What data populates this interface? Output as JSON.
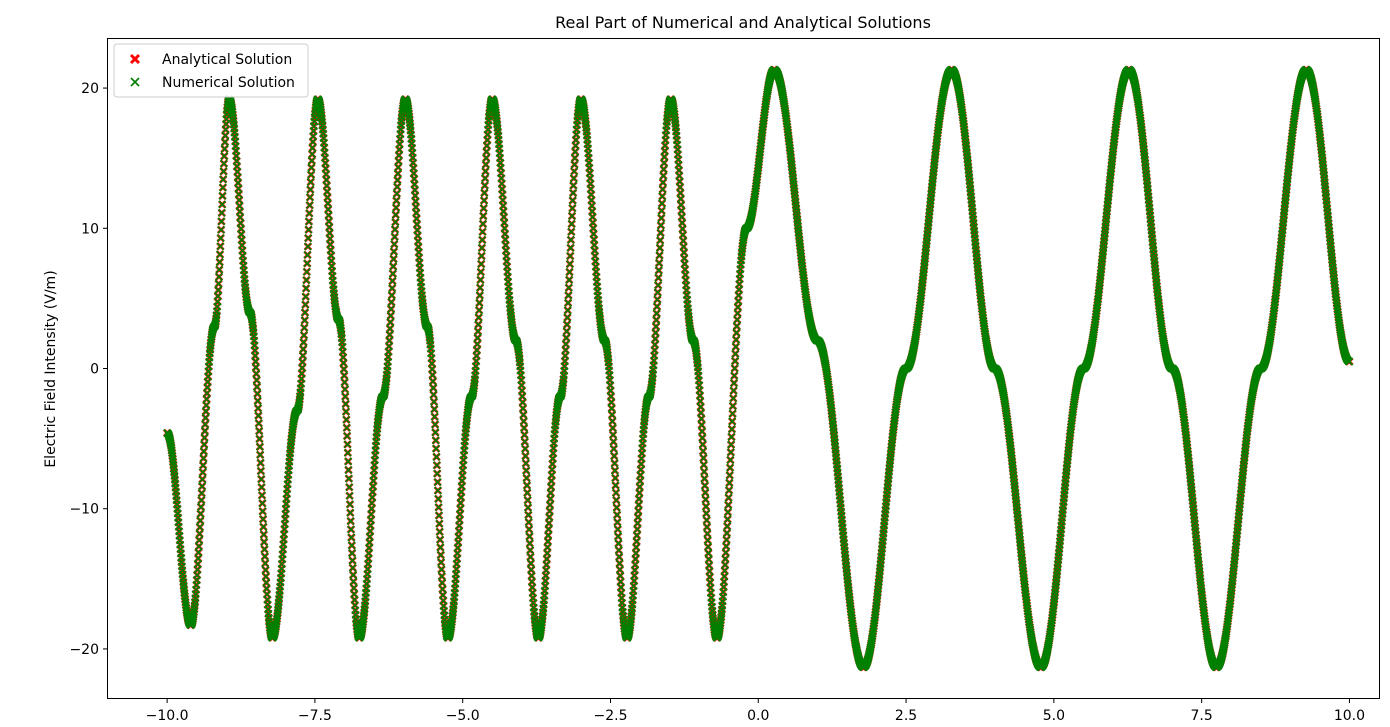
{
  "chart_data": {
    "type": "scatter",
    "title": "Real Part of Numerical and Analytical Solutions",
    "xlabel": "",
    "ylabel": "Electric Field Intensity (V/m)",
    "xlim": [
      -11.0,
      10.5
    ],
    "ylim": [
      -23.5,
      23.5
    ],
    "x_ticks": [
      -10.0,
      -7.5,
      -5.0,
      -2.5,
      0.0,
      2.5,
      5.0,
      7.5,
      10.0
    ],
    "x_tick_labels": [
      "−10.0",
      "−7.5",
      "−5.0",
      "−2.5",
      "0.0",
      "2.5",
      "5.0",
      "7.5",
      "10.0"
    ],
    "y_ticks": [
      -20,
      -10,
      0,
      10,
      20
    ],
    "y_tick_labels": [
      "−20",
      "−10",
      "0",
      "10",
      "20"
    ],
    "grid": false,
    "legend_position": "top-left",
    "series": [
      {
        "name": "Analytical Solution",
        "marker": "X",
        "color": "#ff0000",
        "points": [
          {
            "x": -10.0,
            "y": -4.6
          },
          {
            "x": -9.6,
            "y": -18.3
          },
          {
            "x": -9.2,
            "y": 3.0
          },
          {
            "x": -8.95,
            "y": 19.2
          },
          {
            "x": -8.6,
            "y": 4.0
          },
          {
            "x": -8.22,
            "y": -19.2
          },
          {
            "x": -7.8,
            "y": -3.0
          },
          {
            "x": -7.45,
            "y": 19.2
          },
          {
            "x": -7.1,
            "y": 3.5
          },
          {
            "x": -6.75,
            "y": -19.2
          },
          {
            "x": -6.35,
            "y": -2.0
          },
          {
            "x": -5.97,
            "y": 19.2
          },
          {
            "x": -5.6,
            "y": 3.0
          },
          {
            "x": -5.25,
            "y": -19.2
          },
          {
            "x": -4.85,
            "y": -2.0
          },
          {
            "x": -4.5,
            "y": 19.2
          },
          {
            "x": -4.1,
            "y": 2.0
          },
          {
            "x": -3.72,
            "y": -19.2
          },
          {
            "x": -3.35,
            "y": -2.0
          },
          {
            "x": -3.0,
            "y": 19.2
          },
          {
            "x": -2.6,
            "y": 2.0
          },
          {
            "x": -2.22,
            "y": -19.2
          },
          {
            "x": -1.85,
            "y": -2.0
          },
          {
            "x": -1.48,
            "y": 19.2
          },
          {
            "x": -1.1,
            "y": 2.0
          },
          {
            "x": -0.7,
            "y": -19.2
          },
          {
            "x": -0.2,
            "y": 10.0
          },
          {
            "x": 0.27,
            "y": 21.3
          },
          {
            "x": 1.0,
            "y": 2.0
          },
          {
            "x": 1.78,
            "y": -21.3
          },
          {
            "x": 2.5,
            "y": 0.0
          },
          {
            "x": 3.27,
            "y": 21.3
          },
          {
            "x": 4.0,
            "y": 0.0
          },
          {
            "x": 4.78,
            "y": -21.3
          },
          {
            "x": 5.5,
            "y": 0.0
          },
          {
            "x": 6.27,
            "y": 21.3
          },
          {
            "x": 7.0,
            "y": 0.0
          },
          {
            "x": 7.75,
            "y": -21.3
          },
          {
            "x": 8.5,
            "y": 0.0
          },
          {
            "x": 9.27,
            "y": 21.3
          },
          {
            "x": 10.0,
            "y": 0.5
          }
        ]
      },
      {
        "name": "Numerical Solution",
        "marker": "x",
        "color": "#008000",
        "points": [
          {
            "x": -10.0,
            "y": -4.6
          },
          {
            "x": -9.6,
            "y": -18.3
          },
          {
            "x": -9.2,
            "y": 3.0
          },
          {
            "x": -8.95,
            "y": 19.2
          },
          {
            "x": -8.6,
            "y": 4.0
          },
          {
            "x": -8.22,
            "y": -19.2
          },
          {
            "x": -7.8,
            "y": -3.0
          },
          {
            "x": -7.45,
            "y": 19.2
          },
          {
            "x": -7.1,
            "y": 3.5
          },
          {
            "x": -6.75,
            "y": -19.2
          },
          {
            "x": -6.35,
            "y": -2.0
          },
          {
            "x": -5.97,
            "y": 19.2
          },
          {
            "x": -5.6,
            "y": 3.0
          },
          {
            "x": -5.25,
            "y": -19.2
          },
          {
            "x": -4.85,
            "y": -2.0
          },
          {
            "x": -4.5,
            "y": 19.2
          },
          {
            "x": -4.1,
            "y": 2.0
          },
          {
            "x": -3.72,
            "y": -19.2
          },
          {
            "x": -3.35,
            "y": -2.0
          },
          {
            "x": -3.0,
            "y": 19.2
          },
          {
            "x": -2.6,
            "y": 2.0
          },
          {
            "x": -2.22,
            "y": -19.2
          },
          {
            "x": -1.85,
            "y": -2.0
          },
          {
            "x": -1.48,
            "y": 19.2
          },
          {
            "x": -1.1,
            "y": 2.0
          },
          {
            "x": -0.7,
            "y": -19.2
          },
          {
            "x": -0.2,
            "y": 10.0
          },
          {
            "x": 0.27,
            "y": 21.3
          },
          {
            "x": 1.0,
            "y": 2.0
          },
          {
            "x": 1.78,
            "y": -21.3
          },
          {
            "x": 2.5,
            "y": 0.0
          },
          {
            "x": 3.27,
            "y": 21.3
          },
          {
            "x": 4.0,
            "y": 0.0
          },
          {
            "x": 4.78,
            "y": -21.3
          },
          {
            "x": 5.5,
            "y": 0.0
          },
          {
            "x": 6.27,
            "y": 21.3
          },
          {
            "x": 7.0,
            "y": 0.0
          },
          {
            "x": 7.75,
            "y": -21.3
          },
          {
            "x": 8.5,
            "y": 0.0
          },
          {
            "x": 9.27,
            "y": 21.3
          },
          {
            "x": 10.0,
            "y": 0.5
          }
        ]
      }
    ]
  }
}
